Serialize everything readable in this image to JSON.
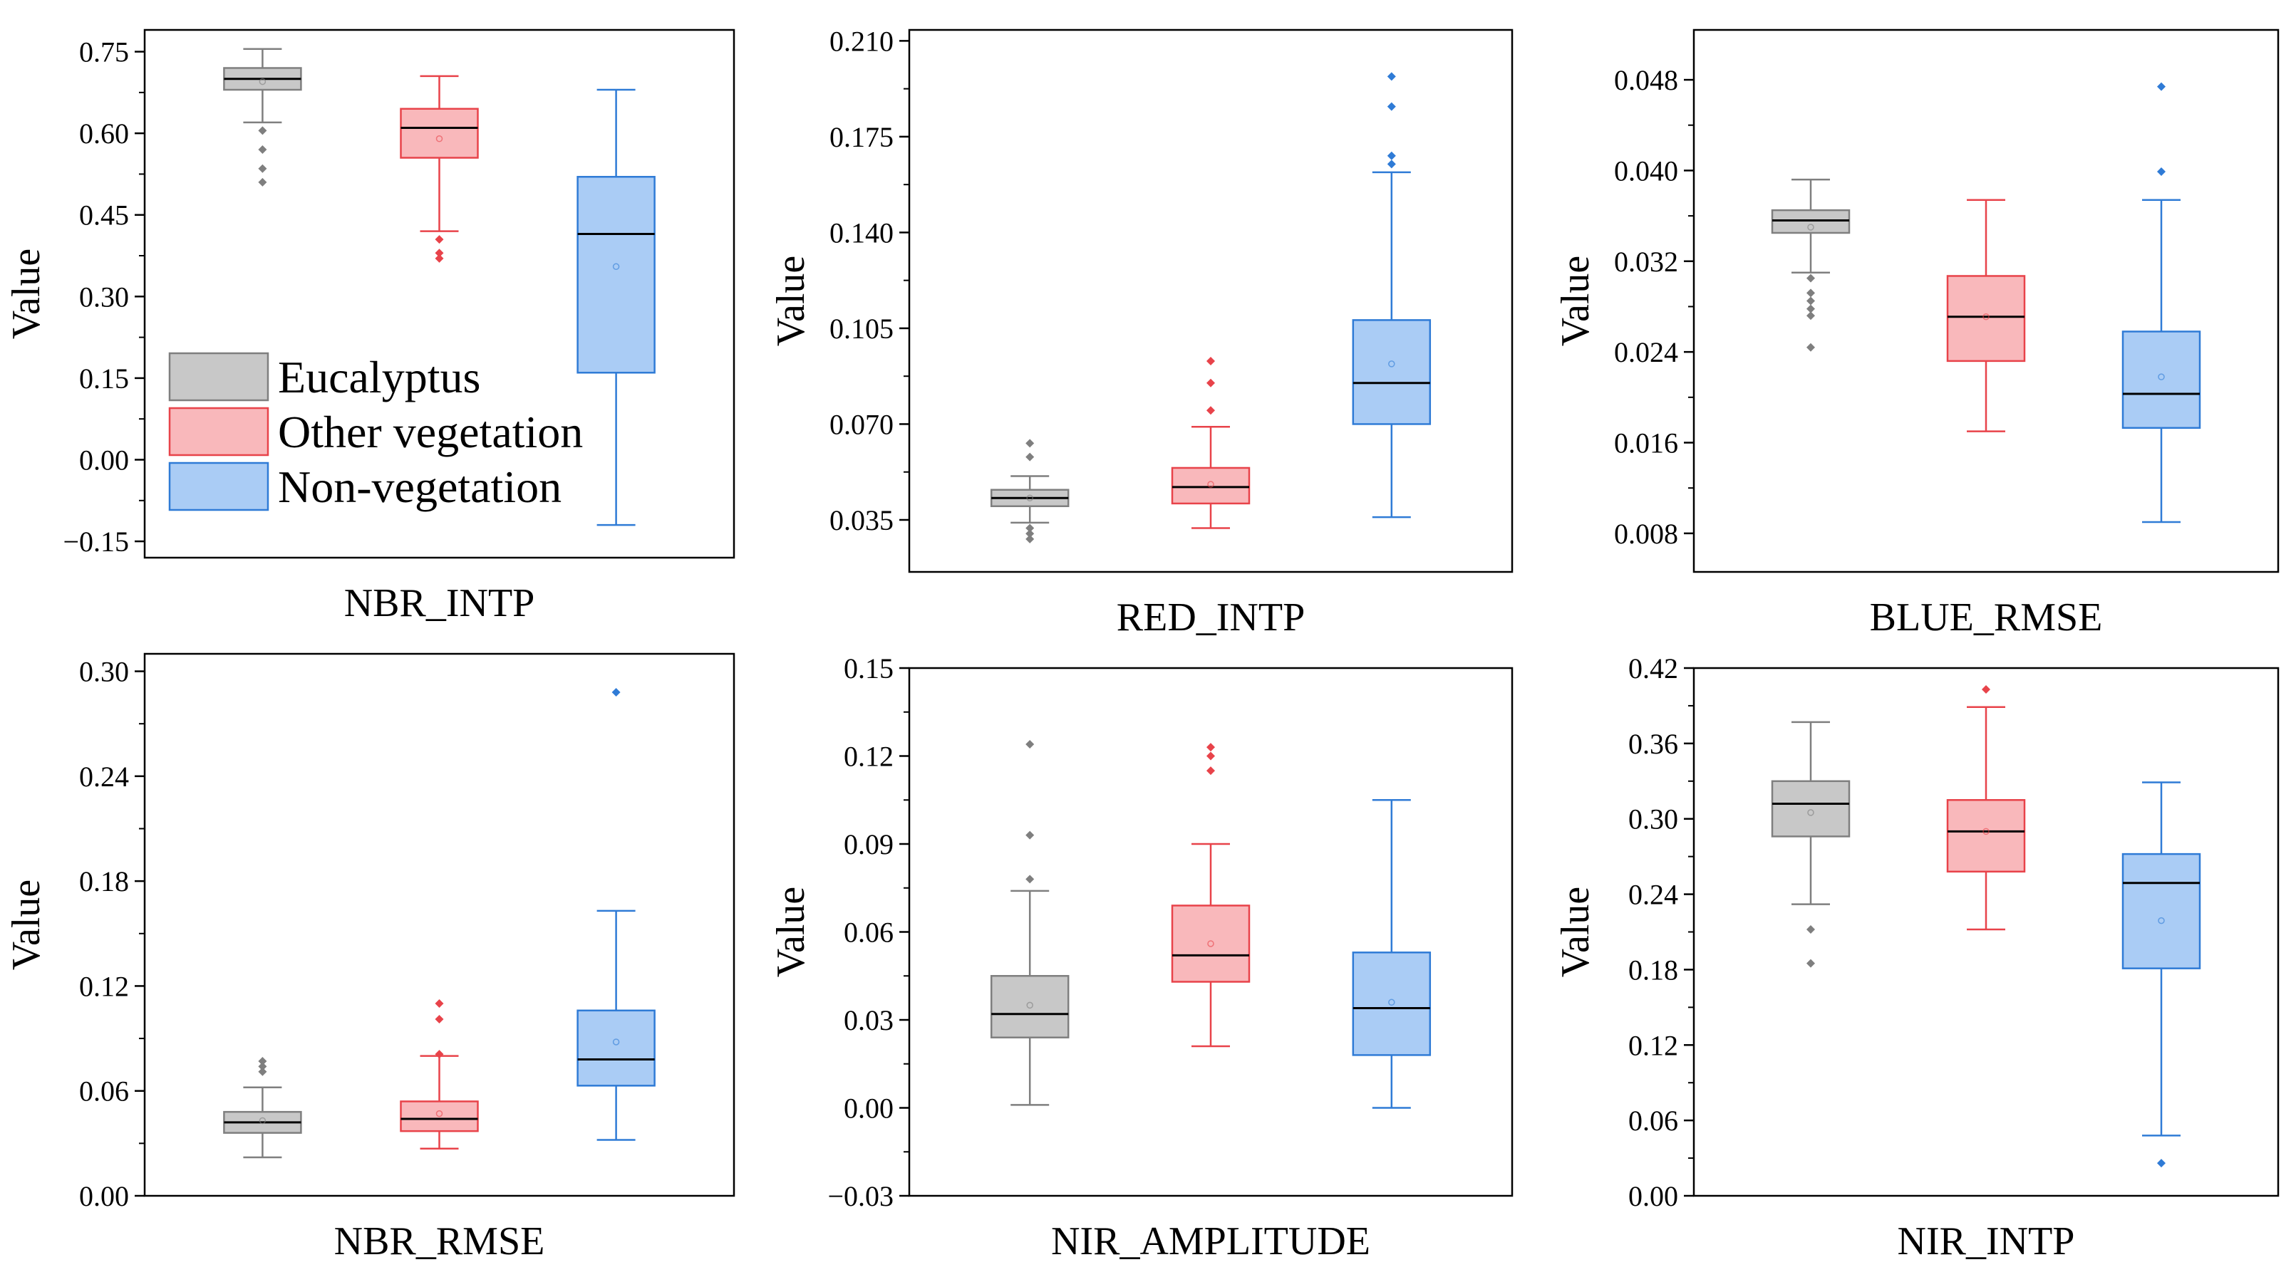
{
  "legend": {
    "placement": "lower-left of first panel",
    "entries": [
      {
        "name": "Eucalyptus",
        "color": "#7f7f7f",
        "fill": "#c8c8c8"
      },
      {
        "name": "Other vegetation",
        "color": "#e8434a",
        "fill": "#f9b8bb"
      },
      {
        "name": "Non-vegetation",
        "color": "#2f7bd6",
        "fill": "#aaccf5"
      }
    ]
  },
  "chart_data": [
    {
      "type": "box",
      "xlabel": "NBR_INTP",
      "ylabel": "Value",
      "ylim": [
        -0.18,
        0.79
      ],
      "yticks": [
        -0.15,
        0.0,
        0.15,
        0.3,
        0.45,
        0.6,
        0.75
      ],
      "ytick_labels": [
        "−0.15",
        "0.00",
        "0.15",
        "0.30",
        "0.45",
        "0.60",
        "0.75"
      ],
      "series": [
        {
          "name": "Eucalyptus",
          "whisker_low": 0.62,
          "q1": 0.68,
          "median": 0.7,
          "q3": 0.72,
          "whisker_high": 0.755,
          "mean": 0.695,
          "outliers": [
            0.605,
            0.57,
            0.535,
            0.51
          ]
        },
        {
          "name": "Other vegetation",
          "whisker_low": 0.42,
          "q1": 0.555,
          "median": 0.61,
          "q3": 0.645,
          "whisker_high": 0.705,
          "mean": 0.59,
          "outliers": [
            0.405,
            0.38,
            0.37
          ]
        },
        {
          "name": "Non-vegetation",
          "whisker_low": -0.12,
          "q1": 0.16,
          "median": 0.415,
          "q3": 0.52,
          "whisker_high": 0.68,
          "mean": 0.355,
          "outliers": []
        }
      ]
    },
    {
      "type": "box",
      "xlabel": "RED_INTP",
      "ylabel": "Value",
      "ylim": [
        0.016,
        0.214
      ],
      "yticks": [
        0.035,
        0.07,
        0.105,
        0.14,
        0.175,
        0.21
      ],
      "ytick_labels": [
        "0.035",
        "0.070",
        "0.105",
        "0.140",
        "0.175",
        "0.210"
      ],
      "series": [
        {
          "name": "Eucalyptus",
          "whisker_low": 0.034,
          "q1": 0.04,
          "median": 0.043,
          "q3": 0.046,
          "whisker_high": 0.051,
          "mean": 0.043,
          "outliers": [
            0.063,
            0.058,
            0.032,
            0.03,
            0.028
          ]
        },
        {
          "name": "Other vegetation",
          "whisker_low": 0.032,
          "q1": 0.041,
          "median": 0.047,
          "q3": 0.054,
          "whisker_high": 0.069,
          "mean": 0.048,
          "outliers": [
            0.093,
            0.085,
            0.075
          ]
        },
        {
          "name": "Non-vegetation",
          "whisker_low": 0.036,
          "q1": 0.07,
          "median": 0.085,
          "q3": 0.108,
          "whisker_high": 0.162,
          "mean": 0.092,
          "outliers": [
            0.197,
            0.186,
            0.168,
            0.165
          ]
        }
      ]
    },
    {
      "type": "box",
      "xlabel": "BLUE_RMSE",
      "ylabel": "Value",
      "ylim": [
        0.0046,
        0.0524
      ],
      "yticks": [
        0.008,
        0.016,
        0.024,
        0.032,
        0.04,
        0.048
      ],
      "ytick_labels": [
        "0.008",
        "0.016",
        "0.024",
        "0.032",
        "0.040",
        "0.048"
      ],
      "series": [
        {
          "name": "Eucalyptus",
          "whisker_low": 0.031,
          "q1": 0.0345,
          "median": 0.0356,
          "q3": 0.0365,
          "whisker_high": 0.0392,
          "mean": 0.035,
          "outliers": [
            0.0305,
            0.0292,
            0.0285,
            0.0278,
            0.0272,
            0.0244
          ]
        },
        {
          "name": "Other vegetation",
          "whisker_low": 0.017,
          "q1": 0.0232,
          "median": 0.0271,
          "q3": 0.0307,
          "whisker_high": 0.0374,
          "mean": 0.0271,
          "outliers": []
        },
        {
          "name": "Non-vegetation",
          "whisker_low": 0.009,
          "q1": 0.0173,
          "median": 0.0203,
          "q3": 0.0258,
          "whisker_high": 0.0374,
          "mean": 0.0218,
          "outliers": [
            0.0474,
            0.0399
          ]
        }
      ]
    },
    {
      "type": "box",
      "xlabel": "NBR_RMSE",
      "ylabel": "Value",
      "ylim": [
        0.0,
        0.31
      ],
      "yticks": [
        0.0,
        0.06,
        0.12,
        0.18,
        0.24,
        0.3
      ],
      "ytick_labels": [
        "0.00",
        "0.06",
        "0.12",
        "0.18",
        "0.24",
        "0.30"
      ],
      "series": [
        {
          "name": "Eucalyptus",
          "whisker_low": 0.022,
          "q1": 0.036,
          "median": 0.042,
          "q3": 0.048,
          "whisker_high": 0.062,
          "mean": 0.043,
          "outliers": [
            0.077,
            0.074,
            0.071
          ]
        },
        {
          "name": "Other vegetation",
          "whisker_low": 0.027,
          "q1": 0.037,
          "median": 0.044,
          "q3": 0.054,
          "whisker_high": 0.08,
          "mean": 0.047,
          "outliers": [
            0.11,
            0.101,
            0.081
          ]
        },
        {
          "name": "Non-vegetation",
          "whisker_low": 0.032,
          "q1": 0.063,
          "median": 0.078,
          "q3": 0.106,
          "whisker_high": 0.163,
          "mean": 0.088,
          "outliers": [
            0.288
          ]
        }
      ]
    },
    {
      "type": "box",
      "xlabel": "NIR_AMPLITUDE",
      "ylabel": "Value",
      "ylim": [
        -0.03,
        0.15
      ],
      "yticks": [
        -0.03,
        0.0,
        0.03,
        0.06,
        0.09,
        0.12,
        0.15
      ],
      "ytick_labels": [
        "−0.03",
        "0.00",
        "0.03",
        "0.06",
        "0.09",
        "0.12",
        "0.15"
      ],
      "series": [
        {
          "name": "Eucalyptus",
          "whisker_low": 0.001,
          "q1": 0.024,
          "median": 0.032,
          "q3": 0.045,
          "whisker_high": 0.074,
          "mean": 0.035,
          "outliers": [
            0.124,
            0.093,
            0.078
          ]
        },
        {
          "name": "Other vegetation",
          "whisker_low": 0.021,
          "q1": 0.043,
          "median": 0.052,
          "q3": 0.069,
          "whisker_high": 0.09,
          "mean": 0.056,
          "outliers": [
            0.123,
            0.12,
            0.115
          ]
        },
        {
          "name": "Non-vegetation",
          "whisker_low": 0.0,
          "q1": 0.018,
          "median": 0.034,
          "q3": 0.053,
          "whisker_high": 0.105,
          "mean": 0.036,
          "outliers": []
        }
      ]
    },
    {
      "type": "box",
      "xlabel": "NIR_INTP",
      "ylabel": "Value",
      "ylim": [
        0.0,
        0.42
      ],
      "yticks": [
        0.0,
        0.06,
        0.12,
        0.18,
        0.24,
        0.3,
        0.36,
        0.42
      ],
      "ytick_labels": [
        "0.00",
        "0.06",
        "0.12",
        "0.18",
        "0.24",
        "0.30",
        "0.36",
        "0.42"
      ],
      "series": [
        {
          "name": "Eucalyptus",
          "whisker_low": 0.232,
          "q1": 0.286,
          "median": 0.312,
          "q3": 0.33,
          "whisker_high": 0.377,
          "mean": 0.305,
          "outliers": [
            0.212,
            0.185
          ]
        },
        {
          "name": "Other vegetation",
          "whisker_low": 0.212,
          "q1": 0.258,
          "median": 0.29,
          "q3": 0.315,
          "whisker_high": 0.389,
          "mean": 0.29,
          "outliers": [
            0.403
          ]
        },
        {
          "name": "Non-vegetation",
          "whisker_low": 0.048,
          "q1": 0.181,
          "median": 0.249,
          "q3": 0.272,
          "whisker_high": 0.329,
          "mean": 0.219,
          "outliers": [
            0.026
          ]
        }
      ]
    }
  ]
}
